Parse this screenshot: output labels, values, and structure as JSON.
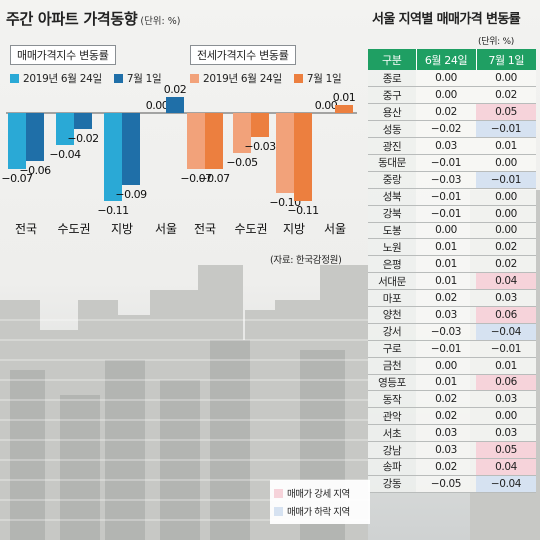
{
  "title": "주간 아파트 가격동향",
  "unit": "(단위: %)",
  "colors": {
    "sale_week1": "#2aa9d6",
    "sale_week2": "#1f6fa8",
    "jeonse_week1": "#f2a27a",
    "jeonse_week2": "#ec7f3f",
    "table_header": "#1f9f63",
    "rise": "#f6d3da",
    "fall": "#d6e2f1"
  },
  "chart_data": [
    {
      "type": "bar",
      "title": "매매가격지수 변동률",
      "categories": [
        "전국",
        "수도권",
        "지방",
        "서울"
      ],
      "series": [
        {
          "name": "2019년 6월 24일",
          "values": [
            -0.07,
            -0.04,
            -0.11,
            0.0
          ]
        },
        {
          "name": "7월 1일",
          "values": [
            -0.06,
            -0.02,
            -0.09,
            0.02
          ]
        }
      ],
      "ylim": [
        -0.12,
        0.03
      ],
      "legend": "top"
    },
    {
      "type": "bar",
      "title": "전세가격지수 변동률",
      "categories": [
        "전국",
        "수도권",
        "지방",
        "서울"
      ],
      "series": [
        {
          "name": "2019년 6월 24일",
          "values": [
            -0.07,
            -0.05,
            -0.1,
            0.0
          ]
        },
        {
          "name": "7월 1일",
          "values": [
            -0.07,
            -0.03,
            -0.11,
            0.01
          ]
        }
      ],
      "ylim": [
        -0.12,
        0.03
      ],
      "legend": "top"
    },
    {
      "type": "table",
      "title": "서울 지역별 매매가격 변동률",
      "unit": "(단위: %)",
      "columns": [
        "구분",
        "6월 24일",
        "7월 1일"
      ],
      "rows": [
        [
          "종로",
          "0.00",
          "0.00"
        ],
        [
          "중구",
          "0.00",
          "0.02"
        ],
        [
          "용산",
          "0.02",
          "0.05"
        ],
        [
          "성동",
          "−0.02",
          "−0.01"
        ],
        [
          "광진",
          "0.03",
          "0.01"
        ],
        [
          "동대문",
          "−0.01",
          "0.00"
        ],
        [
          "중랑",
          "−0.03",
          "−0.01"
        ],
        [
          "성북",
          "−0.01",
          "0.00"
        ],
        [
          "강북",
          "−0.01",
          "0.00"
        ],
        [
          "도봉",
          "0.00",
          "0.00"
        ],
        [
          "노원",
          "0.01",
          "0.02"
        ],
        [
          "은평",
          "0.01",
          "0.02"
        ],
        [
          "서대문",
          "0.01",
          "0.04"
        ],
        [
          "마포",
          "0.02",
          "0.03"
        ],
        [
          "양천",
          "0.03",
          "0.06"
        ],
        [
          "강서",
          "−0.03",
          "−0.04"
        ],
        [
          "구로",
          "−0.01",
          "−0.01"
        ],
        [
          "금천",
          "0.00",
          "0.01"
        ],
        [
          "영등포",
          "0.01",
          "0.06"
        ],
        [
          "동작",
          "0.02",
          "0.03"
        ],
        [
          "관악",
          "0.02",
          "0.00"
        ],
        [
          "서초",
          "0.03",
          "0.03"
        ],
        [
          "강남",
          "0.03",
          "0.05"
        ],
        [
          "송파",
          "0.02",
          "0.04"
        ],
        [
          "강동",
          "−0.05",
          "−0.04"
        ]
      ],
      "highlight_up": [
        "용산",
        "양천",
        "서대문",
        "영등포",
        "강남",
        "송파"
      ],
      "highlight_down": [
        "성동",
        "중랑",
        "강서",
        "강동"
      ]
    }
  ],
  "source": "(자료: 한국감정원)",
  "map_legend": {
    "rise_label": "매매가 강세 지역",
    "fall_label": "매매가 하락 지역"
  }
}
